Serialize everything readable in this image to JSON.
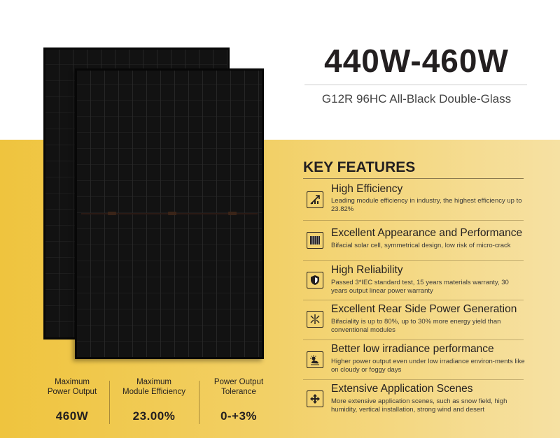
{
  "header": {
    "title": "440W-460W",
    "subtitle": "G12R 96HC All-Black Double-Glass"
  },
  "key_features": {
    "heading": "KEY FEATURES",
    "items": [
      {
        "name": "High Efficiency",
        "desc": "Leading module efficiency in industry, the highest efficiency up to 23.82%",
        "icon": "efficiency-chart-icon"
      },
      {
        "name": "Excellent Appearance and Performance",
        "desc": "Bifacial solar cell, symmetrical design, low risk of micro-crack",
        "icon": "solar-cell-icon"
      },
      {
        "name": "High Reliability",
        "desc": "Passed 3*IEC standard test, 15 years materials warranty, 30 years output linear power warranty",
        "icon": "shield-icon"
      },
      {
        "name": "Excellent Rear Side Power Generation",
        "desc": "Bifaciality is up to 80%, up to 30% more energy yield than conventional modules",
        "icon": "bifacial-icon"
      },
      {
        "name": "Better low irradiance performance",
        "desc": "Higher power output even under low irradiance  environ-ments like on cloudy or foggy days",
        "icon": "cloudy-sun-icon"
      },
      {
        "name": "Extensive Application Scenes",
        "desc": "More extensive application scenes, such as snow field, high humidity, vertical installation, strong wind and desert",
        "icon": "compass-arrows-icon"
      }
    ]
  },
  "specs": [
    {
      "label_line1": "Maximum",
      "label_line2": "Power Output",
      "value": "460W"
    },
    {
      "label_line1": "Maximum",
      "label_line2": "Module Efficiency",
      "value": "23.00%"
    },
    {
      "label_line1": "Power Output",
      "label_line2": "Tolerance",
      "value": "0-+3%"
    }
  ],
  "colors": {
    "band_start": "#efc43e",
    "band_end": "#f6e1a3",
    "text_dark": "#231f20",
    "panel_black": "#121212"
  }
}
